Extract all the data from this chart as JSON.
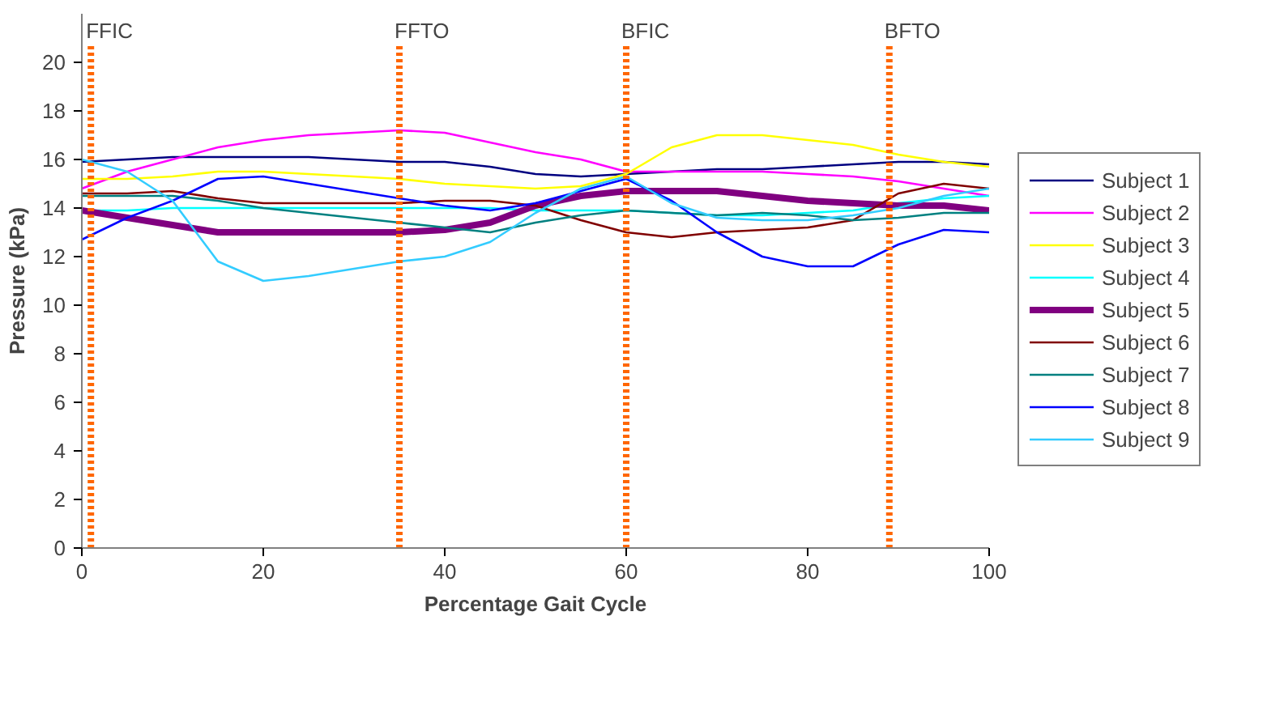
{
  "chart_data": {
    "type": "line",
    "xlabel": "Percentage Gait Cycle",
    "ylabel": "Pressure (kPa)",
    "x": [
      0,
      5,
      10,
      15,
      20,
      25,
      30,
      35,
      40,
      45,
      50,
      55,
      60,
      65,
      70,
      75,
      80,
      85,
      90,
      95,
      100
    ],
    "xlim": [
      0,
      100
    ],
    "xticks": [
      0,
      20,
      40,
      60,
      80,
      100
    ],
    "ylim": [
      0,
      22
    ],
    "yticks": [
      0,
      2,
      4,
      6,
      8,
      10,
      12,
      14,
      16,
      18,
      20
    ],
    "grid": false,
    "legend": "right",
    "marker": "none",
    "line_style": "solid",
    "series": [
      {
        "name": "Subject 1",
        "color": "#000080",
        "values": [
          15.9,
          16.0,
          16.1,
          16.1,
          16.1,
          16.1,
          16.0,
          15.9,
          15.9,
          15.7,
          15.4,
          15.3,
          15.4,
          15.5,
          15.6,
          15.6,
          15.7,
          15.8,
          15.9,
          15.9,
          15.8
        ]
      },
      {
        "name": "Subject 2",
        "color": "#ff00ff",
        "values": [
          14.8,
          15.5,
          16.0,
          16.5,
          16.8,
          17.0,
          17.1,
          17.2,
          17.1,
          16.7,
          16.3,
          16.0,
          15.5,
          15.5,
          15.5,
          15.5,
          15.4,
          15.3,
          15.1,
          14.8,
          14.5
        ]
      },
      {
        "name": "Subject 3",
        "color": "#ffff00",
        "values": [
          15.2,
          15.2,
          15.3,
          15.5,
          15.5,
          15.4,
          15.3,
          15.2,
          15.0,
          14.9,
          14.8,
          14.9,
          15.4,
          16.5,
          17.0,
          17.0,
          16.8,
          16.6,
          16.2,
          15.9,
          15.7
        ]
      },
      {
        "name": "Subject 4",
        "color": "#00ffff",
        "values": [
          13.9,
          13.9,
          14.0,
          14.0,
          14.0,
          14.0,
          14.0,
          14.0,
          14.0,
          14.0,
          13.9,
          13.9,
          13.9,
          13.8,
          13.7,
          13.7,
          13.8,
          13.9,
          14.2,
          14.4,
          14.5
        ]
      },
      {
        "name": "Subject 5",
        "color": "#800080",
        "values": [
          13.9,
          13.6,
          13.3,
          13.0,
          13.0,
          13.0,
          13.0,
          13.0,
          13.1,
          13.4,
          14.1,
          14.5,
          14.7,
          14.7,
          14.7,
          14.5,
          14.3,
          14.2,
          14.1,
          14.1,
          13.9
        ]
      },
      {
        "name": "Subject 6",
        "color": "#800000",
        "values": [
          14.6,
          14.6,
          14.7,
          14.4,
          14.2,
          14.2,
          14.2,
          14.2,
          14.3,
          14.3,
          14.1,
          13.5,
          13.0,
          12.8,
          13.0,
          13.1,
          13.2,
          13.5,
          14.6,
          15.0,
          14.8
        ]
      },
      {
        "name": "Subject 7",
        "color": "#008080",
        "values": [
          14.5,
          14.5,
          14.5,
          14.3,
          14.0,
          13.8,
          13.6,
          13.4,
          13.2,
          13.0,
          13.4,
          13.7,
          13.9,
          13.8,
          13.7,
          13.8,
          13.7,
          13.5,
          13.6,
          13.8,
          13.8
        ]
      },
      {
        "name": "Subject 8",
        "color": "#0000ff",
        "values": [
          12.7,
          13.6,
          14.3,
          15.2,
          15.3,
          15.0,
          14.7,
          14.4,
          14.1,
          13.9,
          14.2,
          14.7,
          15.2,
          14.3,
          13.0,
          12.0,
          11.6,
          11.6,
          12.5,
          13.1,
          13.0
        ]
      },
      {
        "name": "Subject 9",
        "color": "#33ccff",
        "values": [
          16.0,
          15.5,
          14.3,
          11.8,
          11.0,
          11.2,
          11.5,
          11.8,
          12.0,
          12.6,
          13.8,
          14.8,
          15.3,
          14.2,
          13.6,
          13.5,
          13.5,
          13.7,
          14.0,
          14.5,
          14.8
        ]
      }
    ],
    "ref_lines": [
      {
        "axis": "x",
        "value": 1,
        "label": "FFIC",
        "color": "#ff6600",
        "line_style": "dotted"
      },
      {
        "axis": "x",
        "value": 35,
        "label": "FFTO",
        "color": "#ff6600",
        "line_style": "dotted"
      },
      {
        "axis": "x",
        "value": 60,
        "label": "BFIC",
        "color": "#ff6600",
        "line_style": "dotted"
      },
      {
        "axis": "x",
        "value": 89,
        "label": "BFTO",
        "color": "#ff6600",
        "line_style": "dotted"
      }
    ]
  }
}
